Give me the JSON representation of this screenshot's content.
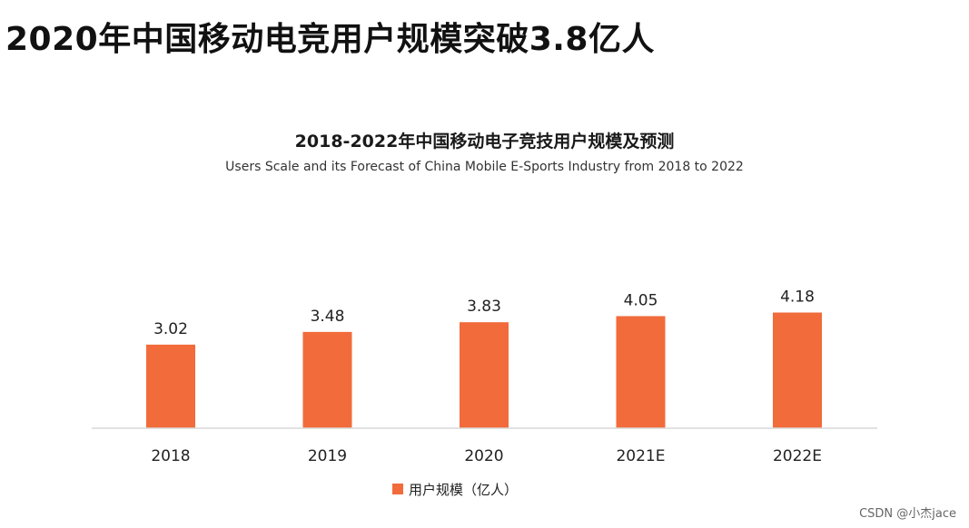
{
  "headline": "2020年中国移动电竞用户规模突破3.8亿人",
  "watermark": "CSDN @小杰jace",
  "colors": {
    "bar": "#F26B3A",
    "axis": "#d9d9d9"
  },
  "chart_data": {
    "type": "bar",
    "title": "2018-2022年中国移动电子竞技用户规模及预测",
    "subtitle": "Users Scale and its Forecast of China  Mobile E-Sports Industry from 2018 to 2022",
    "categories": [
      "2018",
      "2019",
      "2020",
      "2021E",
      "2022E"
    ],
    "series": [
      {
        "name": "用户规模（亿人）",
        "values": [
          3.02,
          3.48,
          3.83,
          4.05,
          4.18
        ],
        "labels": [
          "3.02",
          "3.48",
          "3.83",
          "4.05",
          "4.18"
        ]
      }
    ],
    "legend_position": "bottom-center",
    "grid": false
  }
}
